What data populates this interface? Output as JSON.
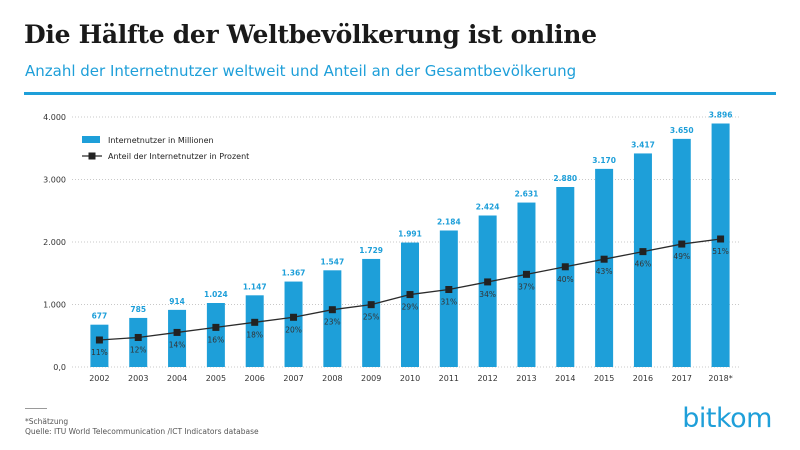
{
  "header": {
    "title": "Die Hälfte der Weltbevölkerung ist online",
    "subtitle": "Anzahl der Internetnutzer weltweit und Anteil an der Gesamtbevölkerung"
  },
  "footer": {
    "note": "*Schätzung",
    "source": "Quelle: ITU World Telecommunication /ICT Indicators database",
    "logo": "bitkom"
  },
  "colors": {
    "accent": "#1e9fd9",
    "line": "#2b2b2b"
  },
  "chart_data": {
    "type": "bar",
    "title": "Die Hälfte der Weltbevölkerung ist online",
    "categories": [
      "2002",
      "2003",
      "2004",
      "2005",
      "2006",
      "2007",
      "2008",
      "2009",
      "2010",
      "2011",
      "2012",
      "2013",
      "2014",
      "2015",
      "2016",
      "2017",
      "2018*"
    ],
    "series": [
      {
        "name": "Internetnutzer in Millionen",
        "kind": "bar",
        "values": [
          677,
          785,
          914,
          1024,
          1147,
          1367,
          1547,
          1729,
          1991,
          2184,
          2424,
          2631,
          2880,
          3170,
          3417,
          3650,
          3896
        ],
        "labels": [
          "677",
          "785",
          "914",
          "1.024",
          "1.147",
          "1.367",
          "1.547",
          "1.729",
          "1.991",
          "2.184",
          "2.424",
          "2.631",
          "2.880",
          "3.170",
          "3.417",
          "3.650",
          "3.896"
        ]
      },
      {
        "name": "Anteil der Internetnutzer in Prozent",
        "kind": "line",
        "values": [
          11,
          12,
          14,
          16,
          18,
          20,
          23,
          25,
          29,
          31,
          34,
          37,
          40,
          43,
          46,
          49,
          51
        ],
        "labels": [
          "11%",
          "12%",
          "14%",
          "16%",
          "18%",
          "20%",
          "23%",
          "25%",
          "29%",
          "31%",
          "34%",
          "37%",
          "40%",
          "43%",
          "46%",
          "49%",
          "51%"
        ]
      }
    ],
    "ylim": [
      0,
      4000
    ],
    "yticks": [
      0,
      1000,
      2000,
      3000,
      4000
    ],
    "ytick_labels": [
      "0,0",
      "1.000",
      "2.000",
      "3.000",
      "4.000"
    ],
    "grid": true,
    "legend": "top-left",
    "xlabel": "",
    "ylabel": ""
  }
}
